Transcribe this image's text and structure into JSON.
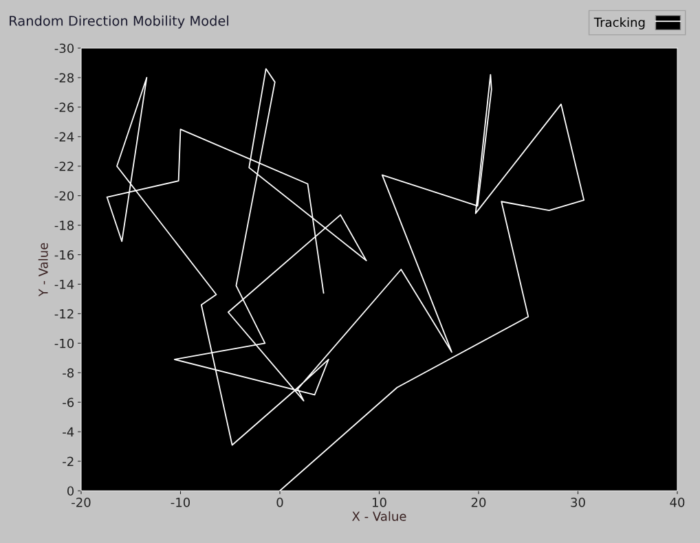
{
  "chart_data": {
    "type": "line",
    "title": "Random Direction Mobility Model",
    "xlabel": "X - Value",
    "ylabel": "Y - Value",
    "series": [
      {
        "name": "Tracking",
        "color": "#ffffff",
        "x": [
          0,
          11.8,
          25,
          22.3,
          27.1,
          30.6,
          28.3,
          19.7,
          21.2,
          21.3,
          19.9,
          10.3,
          17.3,
          12.2,
          1.8,
          2.4,
          -5.2,
          6.1,
          8.7,
          -3.1,
          -1.4,
          -0.5,
          -4.4,
          -1.5,
          -10.6,
          3.5,
          4.9,
          1.5,
          -4.8,
          -7.9,
          -6.4,
          -16.4,
          -13.4,
          -15.9,
          -17.4,
          -10.2,
          -10.0,
          2.8,
          4.4
        ],
        "values": [
          0,
          -7,
          -11.8,
          -19.6,
          -19,
          -19.7,
          -26.2,
          -18.8,
          -28.2,
          -27.2,
          -19.3,
          -21.4,
          -9.4,
          -15,
          -6.9,
          -6.1,
          -12.1,
          -18.7,
          -15.6,
          -21.9,
          -28.6,
          -27.7,
          -13.9,
          -10,
          -8.9,
          -6.5,
          -8.9,
          -6.8,
          -3.1,
          -12.6,
          -13.3,
          -22,
          -28,
          -16.9,
          -19.9,
          -21,
          -24.5,
          -20.8,
          -13.4
        ]
      }
    ],
    "xlim": [
      -20,
      40
    ],
    "xticks": [
      -20,
      -10,
      0,
      10,
      20,
      30,
      40
    ],
    "ylim": [
      0,
      -30
    ],
    "yticks": [
      0,
      -2,
      -4,
      -6,
      -8,
      -10,
      -12,
      -14,
      -16,
      -18,
      -20,
      -22,
      -24,
      -26,
      -28,
      -30
    ],
    "grid": false,
    "legend": "top right",
    "marker": "none",
    "line_style": "solid"
  }
}
